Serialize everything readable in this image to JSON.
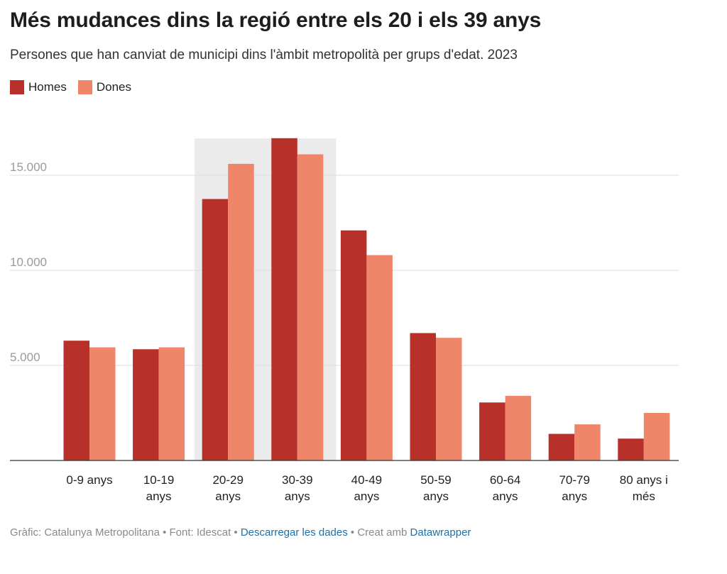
{
  "title": "Més mudances dins la regió entre els 20 i els 39 anys",
  "subtitle": "Persones que han canviat de municipi dins l'àmbit metropolità per grups d'edat. 2023",
  "colors": {
    "homes": "#b8302a",
    "dones": "#ef866a",
    "highlight": "#ebebeb",
    "grid": "#dddddd",
    "axis": "#333333"
  },
  "footer": {
    "credit": "Gràfic: Catalunya Metropolitana • Font: Idescat • ",
    "download": "Descarregar les dades",
    "sep": " • Creat amb ",
    "tool": "Datawrapper"
  },
  "chart_data": {
    "type": "bar",
    "categories": [
      [
        "0-9 anys"
      ],
      [
        "10-19",
        "anys"
      ],
      [
        "20-29",
        "anys"
      ],
      [
        "30-39",
        "anys"
      ],
      [
        "40-49",
        "anys"
      ],
      [
        "50-59",
        "anys"
      ],
      [
        "60-64",
        "anys"
      ],
      [
        "70-79",
        "anys"
      ],
      [
        "80 anys i",
        "més"
      ]
    ],
    "series": [
      {
        "name": "Homes",
        "values": [
          6300,
          5850,
          13750,
          16950,
          12100,
          6700,
          3050,
          1400,
          1150
        ]
      },
      {
        "name": "Dones",
        "values": [
          5950,
          5950,
          15600,
          16100,
          10800,
          6450,
          3400,
          1900,
          2500
        ]
      }
    ],
    "yticks": [
      5000,
      10000,
      15000
    ],
    "ytick_labels": [
      "5.000",
      "10.000",
      "15.000"
    ],
    "ylim": [
      0,
      17000
    ],
    "highlight_categories": [
      "20-29 anys",
      "30-39 anys"
    ],
    "grid": true,
    "legend_position": "top-left"
  }
}
